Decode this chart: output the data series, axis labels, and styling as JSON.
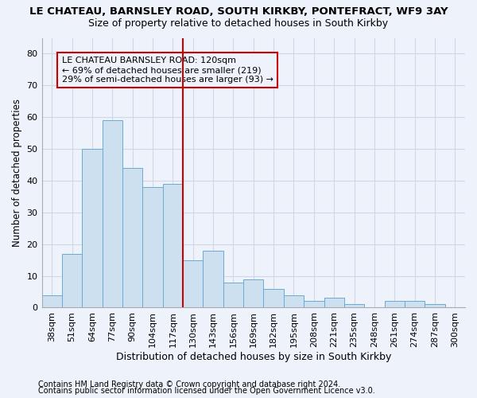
{
  "title1": "LE CHATEAU, BARNSLEY ROAD, SOUTH KIRKBY, PONTEFRACT, WF9 3AY",
  "title2": "Size of property relative to detached houses in South Kirkby",
  "xlabel": "Distribution of detached houses by size in South Kirkby",
  "ylabel": "Number of detached properties",
  "footer1": "Contains HM Land Registry data © Crown copyright and database right 2024.",
  "footer2": "Contains public sector information licensed under the Open Government Licence v3.0.",
  "categories": [
    "38sqm",
    "51sqm",
    "64sqm",
    "77sqm",
    "90sqm",
    "104sqm",
    "117sqm",
    "130sqm",
    "143sqm",
    "156sqm",
    "169sqm",
    "182sqm",
    "195sqm",
    "208sqm",
    "221sqm",
    "235sqm",
    "248sqm",
    "261sqm",
    "274sqm",
    "287sqm",
    "300sqm"
  ],
  "values": [
    4,
    17,
    50,
    59,
    44,
    38,
    39,
    15,
    18,
    8,
    9,
    6,
    4,
    2,
    3,
    1,
    0,
    2,
    2,
    1,
    0
  ],
  "bar_color": "#cce0f0",
  "bar_edge_color": "#6aaad4",
  "vline_x_index": 6.5,
  "vline_color": "#cc0000",
  "annotation_line1": "LE CHATEAU BARNSLEY ROAD: 120sqm",
  "annotation_line2": "← 69% of detached houses are smaller (219)",
  "annotation_line3": "29% of semi-detached houses are larger (93) →",
  "annotation_box_color": "#cc0000",
  "ylim": [
    0,
    85
  ],
  "yticks": [
    0,
    10,
    20,
    30,
    40,
    50,
    60,
    70,
    80
  ],
  "grid_color": "#d0d8e8",
  "bg_color": "#eef2fa",
  "title_fontsize": 9.5,
  "subtitle_fontsize": 9,
  "xlabel_fontsize": 9,
  "ylabel_fontsize": 8.5,
  "tick_fontsize": 8,
  "annotation_fontsize": 8,
  "footer_fontsize": 7
}
